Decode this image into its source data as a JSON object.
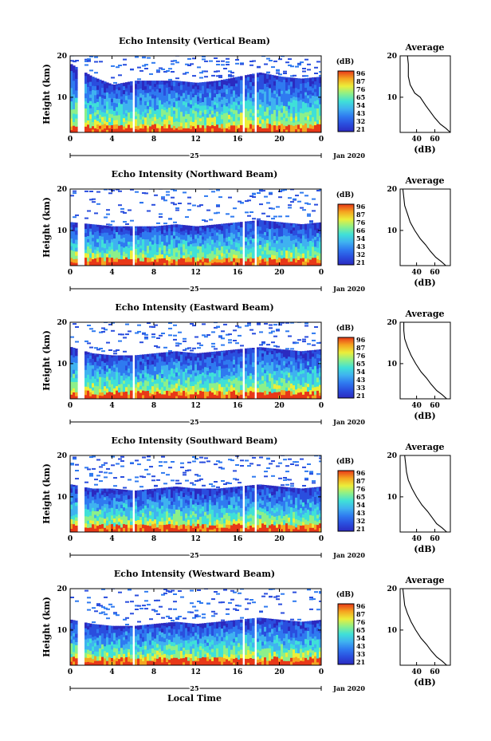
{
  "chart_data": {
    "type": "heatmap",
    "shared": {
      "xlabel": "Local Time",
      "xticks": [
        "0",
        "4",
        "8",
        "12",
        "16",
        "20",
        "0"
      ],
      "xlim_hours": [
        0,
        24
      ],
      "ylabel": "Height (km)",
      "yticks": [
        "20",
        "10"
      ],
      "ylim_km": [
        1.5,
        20
      ],
      "date_day": "25",
      "date_month": "Jan 2020",
      "colorbar_unit": "(dB)",
      "average_title": "Average",
      "average_xlabel": "(dB)",
      "average_yticks": [
        "20",
        "10"
      ],
      "colors": [
        "#2b2ac0",
        "#2a4ede",
        "#2f7af0",
        "#3fb2f0",
        "#3fe0d8",
        "#8cf08a",
        "#ecee3a",
        "#f5a520",
        "#e83818"
      ],
      "data_gaps_hours": [
        [
          0.6,
          1.3
        ],
        [
          5.8,
          6.0
        ],
        [
          16.4,
          16.6
        ],
        [
          17.4,
          17.8
        ]
      ]
    },
    "panels": [
      {
        "title": "Echo Intensity (Vertical Beam)",
        "colorbar_ticks": [
          "96",
          "87",
          "76",
          "65",
          "54",
          "43",
          "32",
          "21"
        ],
        "echo_top_km": [
          18,
          15,
          13,
          14,
          14,
          14,
          13.5,
          14,
          15,
          16,
          15,
          14.5,
          15
        ],
        "average_xticks": [
          "40",
          "60"
        ],
        "average_profile": [
          [
            30,
            20
          ],
          [
            31,
            18
          ],
          [
            31,
            15
          ],
          [
            33,
            13
          ],
          [
            38,
            11
          ],
          [
            44,
            10
          ],
          [
            50,
            8
          ],
          [
            55,
            6.5
          ],
          [
            60,
            5
          ],
          [
            66,
            3.5
          ],
          [
            72,
            2.5
          ],
          [
            77,
            1.5
          ]
        ]
      },
      {
        "title": "Echo Intensity (Northward Beam)",
        "colorbar_ticks": [
          "96",
          "87",
          "76",
          "66",
          "54",
          "43",
          "32",
          "21"
        ],
        "echo_top_km": [
          12,
          11.5,
          11,
          11,
          11,
          11.5,
          11,
          11.5,
          12,
          12.5,
          12,
          11.5,
          12
        ],
        "average_xticks": [
          "40",
          "60"
        ],
        "average_profile": [
          [
            25,
            20
          ],
          [
            26,
            18
          ],
          [
            27,
            16
          ],
          [
            30,
            14
          ],
          [
            33,
            12
          ],
          [
            38,
            10
          ],
          [
            44,
            8
          ],
          [
            50,
            6.5
          ],
          [
            55,
            5
          ],
          [
            61,
            3.5
          ],
          [
            67,
            2.5
          ],
          [
            72,
            1.5
          ]
        ]
      },
      {
        "title": "Echo Intensity (Eastward Beam)",
        "colorbar_ticks": [
          "96",
          "87",
          "76",
          "65",
          "54",
          "43",
          "33",
          "21"
        ],
        "echo_top_km": [
          14,
          12.5,
          12,
          12,
          12.5,
          13,
          12.5,
          13,
          13.5,
          14,
          13.5,
          13,
          13.5
        ],
        "average_xticks": [
          "40",
          "60"
        ],
        "average_profile": [
          [
            26,
            20
          ],
          [
            26,
            18
          ],
          [
            27,
            16
          ],
          [
            30,
            14
          ],
          [
            34,
            12
          ],
          [
            39,
            10
          ],
          [
            45,
            8
          ],
          [
            51,
            6.5
          ],
          [
            56,
            5
          ],
          [
            62,
            3.5
          ],
          [
            68,
            2.5
          ],
          [
            73,
            1.5
          ]
        ]
      },
      {
        "title": "Echo Intensity (Southward Beam)",
        "colorbar_ticks": [
          "96",
          "87",
          "76",
          "65",
          "54",
          "43",
          "32",
          "21"
        ],
        "echo_top_km": [
          13,
          12,
          12,
          11.5,
          12,
          12.5,
          12,
          12,
          12.5,
          13,
          12.5,
          12,
          12.5
        ],
        "average_xticks": [
          "40",
          "60"
        ],
        "average_profile": [
          [
            27,
            20
          ],
          [
            28,
            18
          ],
          [
            29,
            16
          ],
          [
            31,
            14
          ],
          [
            35,
            12
          ],
          [
            40,
            10
          ],
          [
            46,
            8
          ],
          [
            52,
            6.5
          ],
          [
            57,
            5
          ],
          [
            62,
            3.5
          ],
          [
            68,
            2.5
          ],
          [
            73,
            1.5
          ]
        ]
      },
      {
        "title": "Echo Intensity (Westward Beam)",
        "colorbar_ticks": [
          "96",
          "87",
          "76",
          "65",
          "54",
          "43",
          "33",
          "21"
        ],
        "echo_top_km": [
          12.5,
          11.5,
          11,
          11,
          11.5,
          12,
          11.5,
          12,
          12.5,
          13,
          12.5,
          12,
          12.5
        ],
        "average_xticks": [
          "40",
          "60"
        ],
        "average_profile": [
          [
            25,
            20
          ],
          [
            26,
            18
          ],
          [
            27,
            16
          ],
          [
            30,
            14
          ],
          [
            34,
            12
          ],
          [
            39,
            10
          ],
          [
            45,
            8
          ],
          [
            51,
            6.5
          ],
          [
            56,
            5
          ],
          [
            62,
            3.5
          ],
          [
            68,
            2.5
          ],
          [
            73,
            1.5
          ]
        ]
      }
    ]
  }
}
